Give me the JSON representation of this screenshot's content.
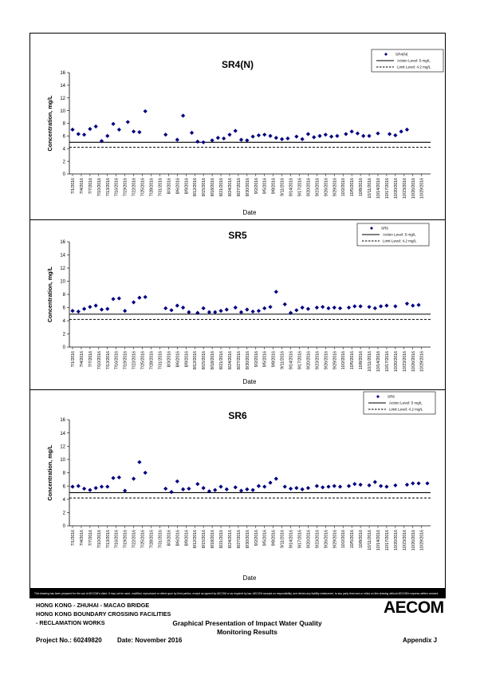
{
  "chart_data": [
    {
      "type": "scatter",
      "title": "SR4(N)",
      "xlabel": "Date",
      "ylabel": "Concentration, mg/L",
      "ylim": [
        0,
        16
      ],
      "yticks": [
        0,
        2,
        4,
        6,
        8,
        10,
        12,
        14,
        16
      ],
      "x_tick_labels": [
        "7/1/2016",
        "7/4/2016",
        "7/7/2016",
        "7/10/2016",
        "7/13/2016",
        "7/16/2016",
        "7/19/2016",
        "7/22/2016",
        "7/25/2016",
        "7/28/2016",
        "7/31/2016",
        "8/3/2016",
        "8/6/2016",
        "8/9/2016",
        "8/12/2016",
        "8/15/2016",
        "8/18/2016",
        "8/21/2016",
        "8/24/2016",
        "8/27/2016",
        "8/30/2016",
        "9/2/2016",
        "9/5/2016",
        "9/8/2016",
        "9/11/2016",
        "9/14/2016",
        "9/17/2016",
        "9/20/2016",
        "9/23/2016",
        "9/26/2016",
        "9/29/2016",
        "10/2/2016",
        "10/5/2016",
        "10/8/2016",
        "10/11/2016",
        "10/14/2016",
        "10/17/2016",
        "10/20/2016",
        "10/23/2016",
        "10/26/2016",
        "10/29/2016"
      ],
      "legend": {
        "placement": "top-right",
        "entries": [
          "SR4(N)",
          "Action Level: 5 mg/L",
          "Limit Level: 4.2 mg/L"
        ]
      },
      "action_level": 5,
      "limit_level": 4.2,
      "series": [
        {
          "name": "SR4(N)",
          "marker": "diamond",
          "color": "#000080",
          "x": [
            "7/1/2016",
            "7/3/2016",
            "7/5/2016",
            "7/7/2016",
            "7/9/2016",
            "7/11/2016",
            "7/13/2016",
            "7/15/2016",
            "7/17/2016",
            "7/20/2016",
            "7/22/2016",
            "7/24/2016",
            "7/26/2016",
            "7/28/2016",
            "7/30/2016",
            "8/2/2016",
            "8/6/2016",
            "8/8/2016",
            "8/11/2016",
            "8/13/2016",
            "8/15/2016",
            "8/18/2016",
            "8/20/2016",
            "8/22/2016",
            "8/24/2016",
            "8/26/2016",
            "8/28/2016",
            "8/30/2016",
            "9/1/2016",
            "9/3/2016",
            "9/5/2016",
            "9/7/2016",
            "9/9/2016",
            "9/11/2016",
            "9/13/2016",
            "9/16/2016",
            "9/18/2016",
            "9/20/2016",
            "9/22/2016",
            "9/24/2016",
            "9/26/2016",
            "9/28/2016",
            "9/30/2016",
            "10/3/2016",
            "10/5/2016",
            "10/7/2016",
            "10/9/2016",
            "10/11/2016",
            "10/14/2016",
            "10/16/2016",
            "10/18/2016",
            "10/20/2016",
            "10/22/2016",
            "10/24/2016",
            "10/27/2016",
            "10/29/2016",
            "10/31/2016"
          ],
          "values": [
            7.0,
            6.3,
            6.2,
            7.1,
            7.5,
            5.2,
            6.0,
            7.9,
            7.0,
            8.2,
            6.7,
            6.6,
            9.9,
            null,
            null,
            6.2,
            5.4,
            9.2,
            6.5,
            5.1,
            5.0,
            5.3,
            5.7,
            5.6,
            6.2,
            6.8,
            5.4,
            5.3,
            5.9,
            6.1,
            6.2,
            6.0,
            5.7,
            5.5,
            5.6,
            5.9,
            5.5,
            6.3,
            5.8,
            6.0,
            6.2,
            5.9,
            6.0,
            6.3,
            6.7,
            6.4,
            6.0,
            6.0,
            6.4,
            null,
            6.3,
            6.1,
            6.7,
            7.0,
            null,
            null,
            null
          ]
        }
      ]
    },
    {
      "type": "scatter",
      "title": "SR5",
      "xlabel": "Date",
      "ylabel": "Concentration, mg/L",
      "ylim": [
        0,
        16
      ],
      "yticks": [
        0,
        2,
        4,
        6,
        8,
        10,
        12,
        14,
        16
      ],
      "x_tick_labels": [
        "7/1/2016",
        "7/4/2016",
        "7/7/2016",
        "7/10/2016",
        "7/13/2016",
        "7/16/2016",
        "7/19/2016",
        "7/22/2016",
        "7/25/2016",
        "7/28/2016",
        "7/31/2016",
        "8/3/2016",
        "8/6/2016",
        "8/9/2016",
        "8/12/2016",
        "8/15/2016",
        "8/18/2016",
        "8/21/2016",
        "8/24/2016",
        "8/27/2016",
        "8/30/2016",
        "9/2/2016",
        "9/5/2016",
        "9/8/2016",
        "9/11/2016",
        "9/14/2016",
        "9/17/2016",
        "9/20/2016",
        "9/23/2016",
        "9/26/2016",
        "9/29/2016",
        "10/2/2016",
        "10/5/2016",
        "10/8/2016",
        "10/11/2016",
        "10/14/2016",
        "10/17/2016",
        "10/20/2016",
        "10/23/2016",
        "10/26/2016",
        "10/29/2016"
      ],
      "legend": {
        "placement": "top-right",
        "entries": [
          "SR5",
          "Action Level: 5 mg/L",
          "Limit Level: 4.2 mg/L"
        ]
      },
      "action_level": 5,
      "limit_level": 4.2,
      "series": [
        {
          "name": "SR5",
          "marker": "diamond",
          "color": "#000080",
          "x": [
            "7/1/2016",
            "7/3/2016",
            "7/5/2016",
            "7/7/2016",
            "7/9/2016",
            "7/11/2016",
            "7/13/2016",
            "7/15/2016",
            "7/17/2016",
            "7/19/2016",
            "7/22/2016",
            "7/24/2016",
            "7/26/2016",
            "7/28/2016",
            "8/2/2016",
            "8/4/2016",
            "8/6/2016",
            "8/8/2016",
            "8/10/2016",
            "8/13/2016",
            "8/15/2016",
            "8/17/2016",
            "8/19/2016",
            "8/21/2016",
            "8/23/2016",
            "8/26/2016",
            "8/28/2016",
            "8/30/2016",
            "9/1/2016",
            "9/3/2016",
            "9/5/2016",
            "9/7/2016",
            "9/9/2016",
            "9/12/2016",
            "9/14/2016",
            "9/16/2016",
            "9/18/2016",
            "9/20/2016",
            "9/23/2016",
            "9/25/2016",
            "9/27/2016",
            "9/29/2016",
            "10/1/2016",
            "10/4/2016",
            "10/6/2016",
            "10/8/2016",
            "10/11/2016",
            "10/13/2016",
            "10/15/2016",
            "10/17/2016",
            "10/20/2016",
            "10/24/2016",
            "10/26/2016",
            "10/28/2016",
            "10/31/2016"
          ],
          "values": [
            5.5,
            5.4,
            5.8,
            6.1,
            6.3,
            5.7,
            5.8,
            7.3,
            7.4,
            5.5,
            6.8,
            7.5,
            7.6,
            null,
            5.9,
            5.6,
            6.3,
            6.0,
            5.3,
            5.2,
            5.9,
            5.3,
            5.3,
            5.5,
            5.7,
            6.0,
            5.3,
            5.7,
            5.4,
            5.5,
            5.9,
            6.1,
            8.4,
            6.5,
            5.2,
            5.6,
            6.0,
            5.8,
            6.0,
            6.1,
            5.9,
            6.0,
            5.9,
            6.0,
            6.2,
            6.2,
            6.1,
            5.9,
            6.2,
            6.3,
            6.2,
            6.6,
            6.3,
            6.4,
            null
          ]
        }
      ]
    },
    {
      "type": "scatter",
      "title": "SR6",
      "xlabel": "Date",
      "ylabel": "Concentration, mg/L",
      "ylim": [
        0,
        16
      ],
      "yticks": [
        0,
        2,
        4,
        6,
        8,
        10,
        12,
        14,
        16
      ],
      "x_tick_labels": [
        "7/1/2016",
        "7/4/2016",
        "7/7/2016",
        "7/10/2016",
        "7/13/2016",
        "7/16/2016",
        "7/19/2016",
        "7/22/2016",
        "7/25/2016",
        "7/28/2016",
        "7/31/2016",
        "8/3/2016",
        "8/6/2016",
        "8/9/2016",
        "8/12/2016",
        "8/15/2016",
        "8/18/2016",
        "8/21/2016",
        "8/24/2016",
        "8/27/2016",
        "8/30/2016",
        "9/2/2016",
        "9/5/2016",
        "9/8/2016",
        "9/11/2016",
        "9/14/2016",
        "9/17/2016",
        "9/20/2016",
        "9/23/2016",
        "9/26/2016",
        "9/29/2016",
        "10/2/2016",
        "10/5/2016",
        "10/8/2016",
        "10/11/2016",
        "10/14/2016",
        "10/17/2016",
        "10/20/2016",
        "10/23/2016",
        "10/26/2016",
        "10/29/2016"
      ],
      "legend": {
        "placement": "top-right",
        "entries": [
          "SR6",
          "Action Level: 5 mg/L",
          "Limit Level: 4.2 mg/L"
        ]
      },
      "action_level": 5,
      "limit_level": 4.2,
      "series": [
        {
          "name": "SR6",
          "marker": "diamond",
          "color": "#000080",
          "x": [
            "7/1/2016",
            "7/3/2016",
            "7/5/2016",
            "7/7/2016",
            "7/9/2016",
            "7/11/2016",
            "7/13/2016",
            "7/15/2016",
            "7/17/2016",
            "7/19/2016",
            "7/22/2016",
            "7/24/2016",
            "7/26/2016",
            "7/28/2016",
            "8/2/2016",
            "8/4/2016",
            "8/6/2016",
            "8/8/2016",
            "8/10/2016",
            "8/13/2016",
            "8/15/2016",
            "8/17/2016",
            "8/19/2016",
            "8/21/2016",
            "8/23/2016",
            "8/26/2016",
            "8/28/2016",
            "8/30/2016",
            "9/1/2016",
            "9/3/2016",
            "9/5/2016",
            "9/7/2016",
            "9/9/2016",
            "9/12/2016",
            "9/14/2016",
            "9/16/2016",
            "9/18/2016",
            "9/20/2016",
            "9/23/2016",
            "9/25/2016",
            "9/27/2016",
            "9/29/2016",
            "10/1/2016",
            "10/4/2016",
            "10/6/2016",
            "10/8/2016",
            "10/11/2016",
            "10/13/2016",
            "10/15/2016",
            "10/17/2016",
            "10/20/2016",
            "10/24/2016",
            "10/26/2016",
            "10/28/2016",
            "10/31/2016"
          ],
          "values": [
            5.9,
            6.0,
            5.6,
            5.4,
            5.7,
            5.9,
            5.9,
            7.2,
            7.3,
            5.3,
            7.1,
            9.6,
            8.0,
            null,
            5.6,
            5.1,
            6.7,
            5.5,
            5.6,
            6.3,
            5.7,
            5.2,
            5.4,
            5.9,
            5.5,
            5.8,
            5.3,
            5.5,
            5.4,
            6.0,
            5.9,
            6.5,
            7.1,
            5.9,
            5.6,
            5.7,
            5.5,
            5.7,
            6.0,
            5.8,
            5.9,
            6.0,
            5.9,
            6.0,
            6.3,
            6.2,
            6.1,
            6.6,
            6.0,
            5.9,
            6.1,
            6.2,
            6.4,
            6.4,
            6.4
          ]
        }
      ]
    }
  ],
  "disclaimer": "This drawing has been prepared for the use of AECOM's client. It may not be used, modified, reproduced or relied upon by third parties, except as agreed by AECOM or as required by law. AECOM accepts no responsibility, and denies any liability whatsoever, to any party that uses or relies on this drawing without AECOM's express written consent.",
  "footer": {
    "project_line1": "HONG KONG - ZHUHAI - MACAO BRIDGE",
    "project_line2": "HONG KONG BOUNDARY CROSSING FACILITIES",
    "project_line3": "- RECLAMATION WORKS",
    "title_line1": "Graphical Presentation of Impact Water Quality",
    "title_line2": "Monitoring Results",
    "logo": "AECOM",
    "project_no": "Project No.: 60249820",
    "date": "Date: November 2016",
    "appendix": "Appendix J"
  }
}
